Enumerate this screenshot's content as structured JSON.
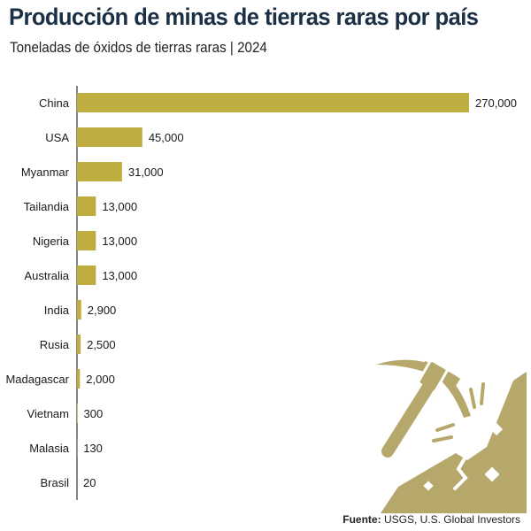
{
  "header": {
    "title": "Producción de minas de tierras raras por país",
    "subtitle": "Toneladas de óxidos de tierras raras | 2024"
  },
  "source": {
    "label": "Fuente:",
    "text": "USGS, U.S. Global Investors"
  },
  "colors": {
    "bar": "#bfae3f",
    "axis": "#333333",
    "title": "#1b2f45",
    "illustration": "#b6a86b"
  },
  "illustration": {
    "icon": "pickaxe-mining-icon"
  },
  "chart_data": {
    "type": "bar",
    "orientation": "horizontal",
    "categories": [
      "China",
      "USA",
      "Myanmar",
      "Tailandia",
      "Nigeria",
      "Australia",
      "India",
      "Rusia",
      "Madagascar",
      "Vietnam",
      "Malasia",
      "Brasil"
    ],
    "values": [
      270000,
      45000,
      31000,
      13000,
      13000,
      13000,
      2900,
      2500,
      2000,
      300,
      130,
      20
    ],
    "value_labels": [
      "270,000",
      "45,000",
      "31,000",
      "13,000",
      "13,000",
      "13,000",
      "2,900",
      "2,500",
      "2,000",
      "300",
      "130",
      "20"
    ],
    "xlim": [
      0,
      270000
    ],
    "grid": false,
    "legend": "none"
  }
}
